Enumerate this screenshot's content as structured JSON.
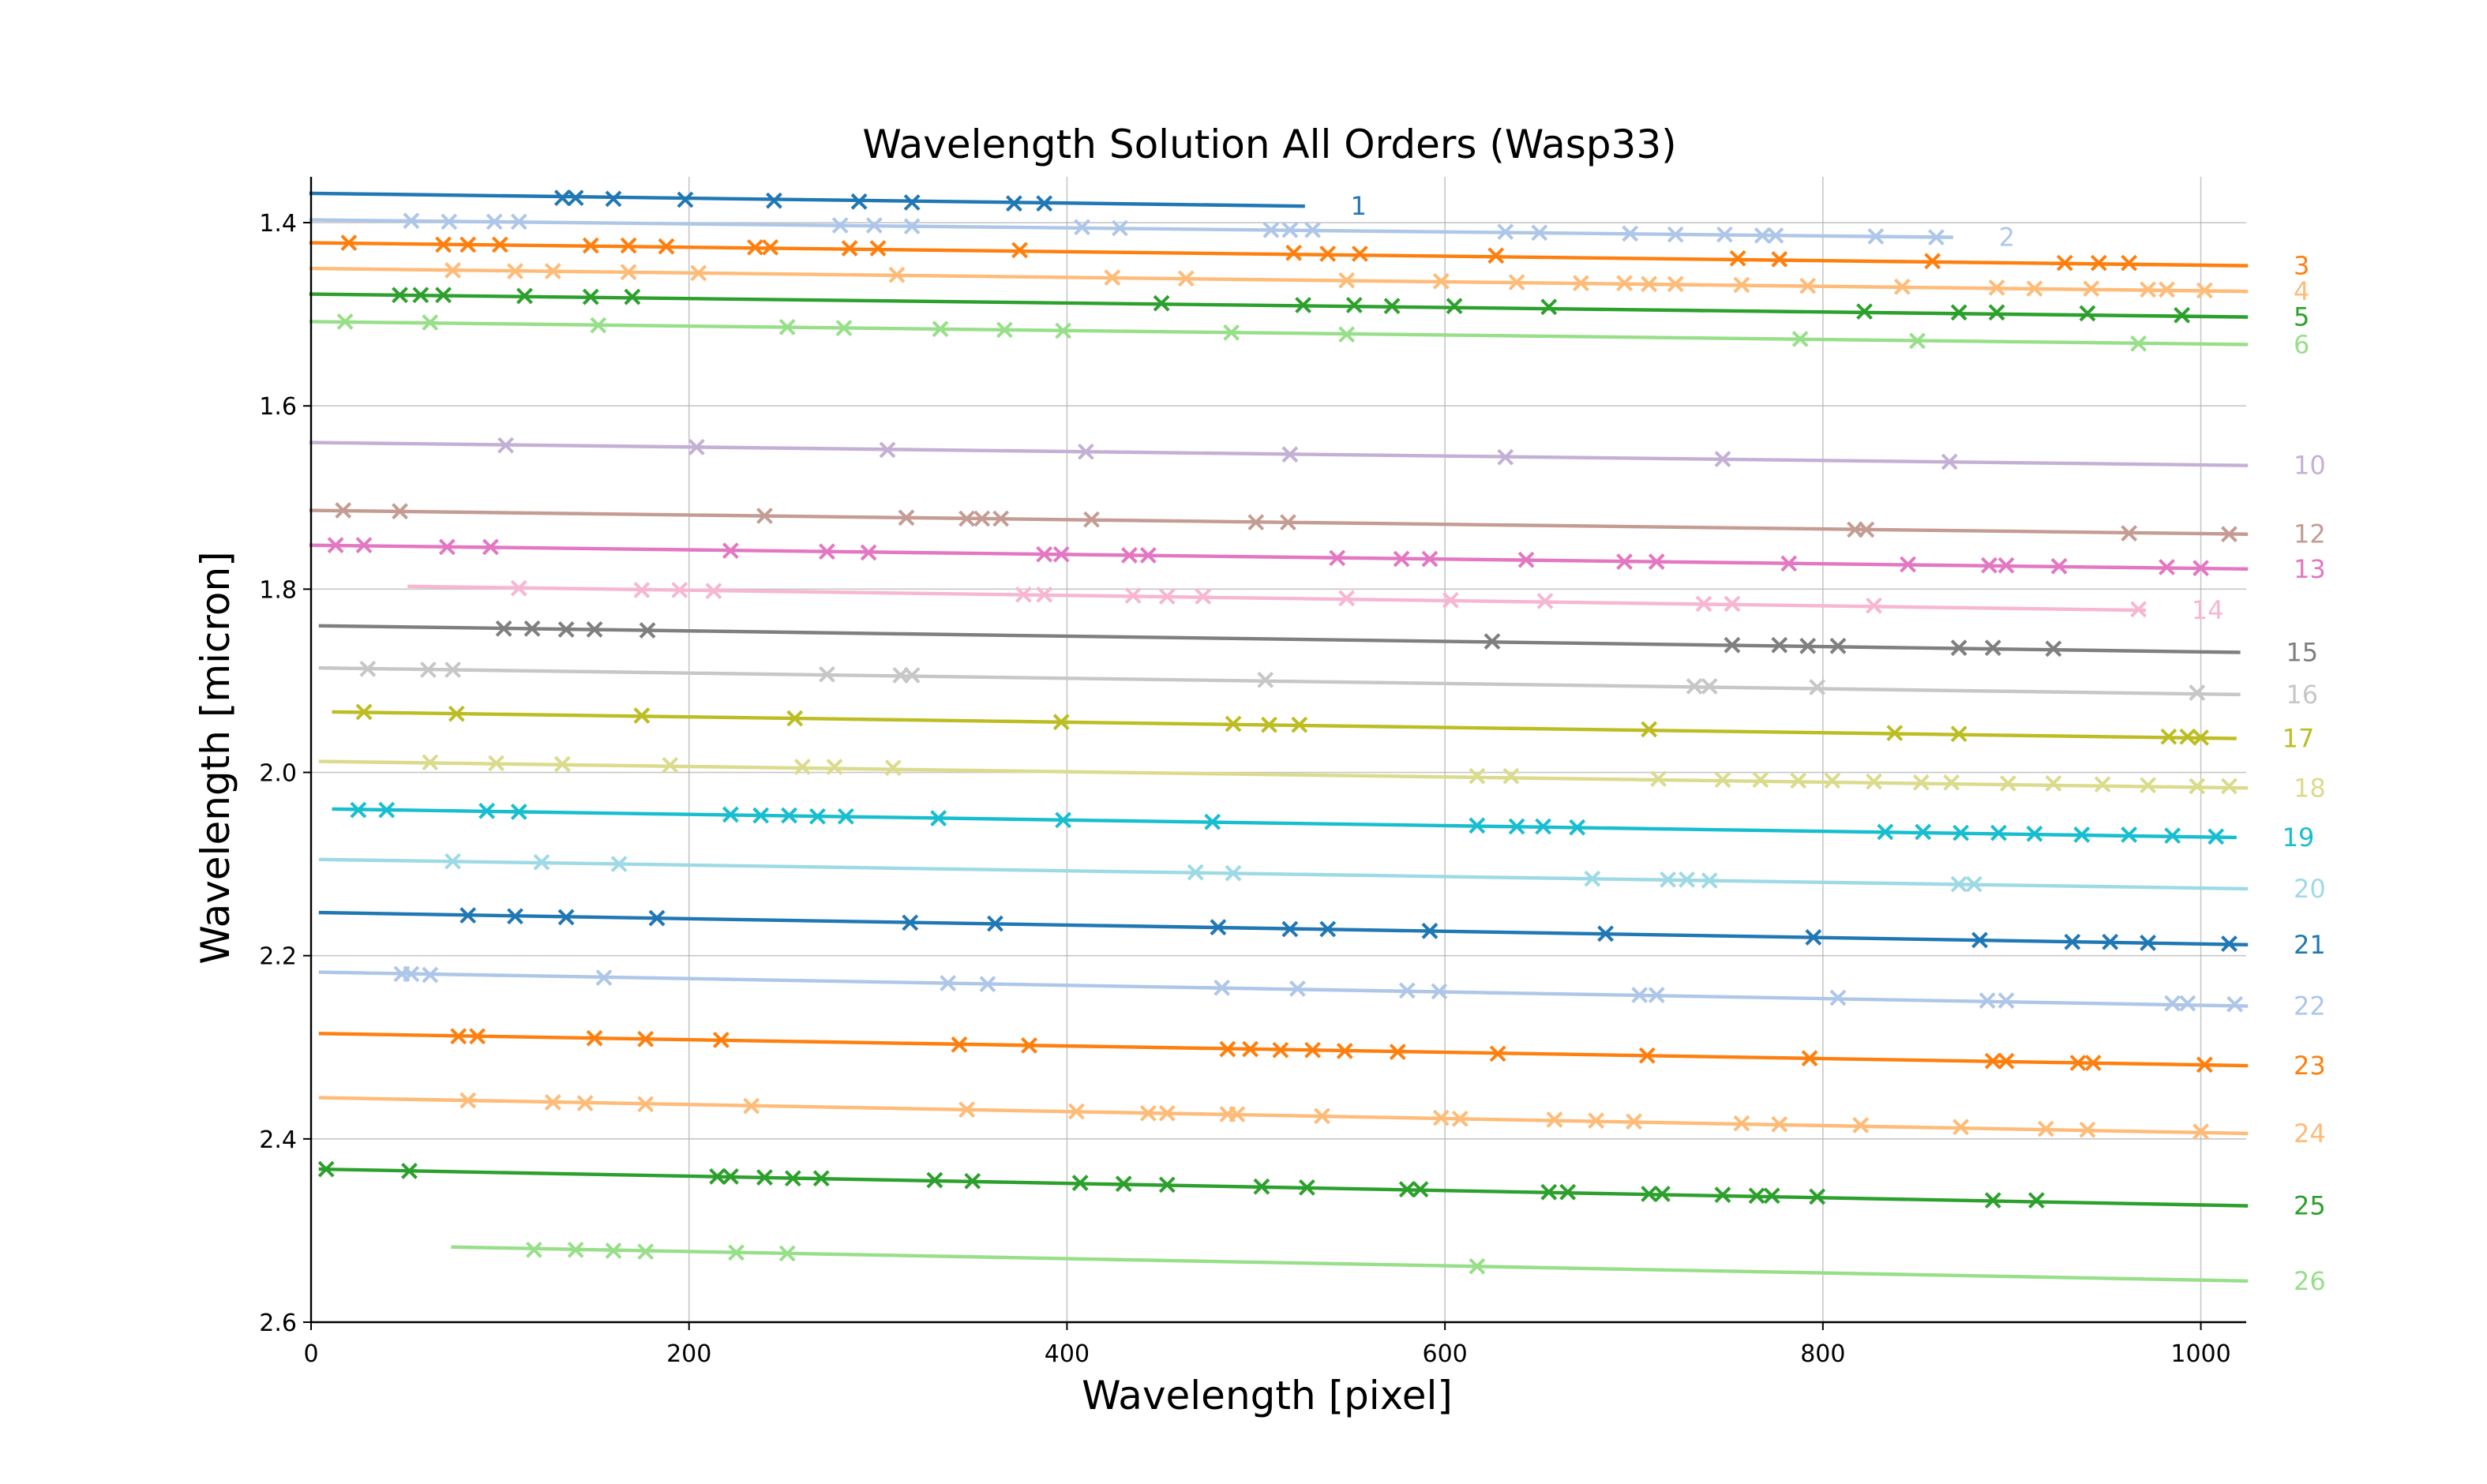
{
  "chart_data": {
    "type": "line",
    "title": "Wavelength Solution All Orders (Wasp33)",
    "xlabel": "Wavelength [pixel]",
    "ylabel": "Wavelength [micron]",
    "xlim": [
      0,
      1024
    ],
    "ylim": [
      2.6,
      1.35
    ],
    "y_inverted": true,
    "grid": true,
    "xticks": [
      0,
      200,
      400,
      600,
      800,
      1000
    ],
    "yticks": [
      1.4,
      1.6,
      1.8,
      2.0,
      2.2,
      2.4,
      2.6
    ],
    "xtick_labels": [
      "0",
      "200",
      "400",
      "600",
      "800",
      "1000"
    ],
    "ytick_labels": [
      "1.4",
      "1.6",
      "1.8",
      "2.0",
      "2.2",
      "2.4",
      "2.6"
    ],
    "series": [
      {
        "name": "1",
        "color": "#1f77b4",
        "line_x": [
          0,
          525
        ],
        "line_y": [
          1.368,
          1.382
        ],
        "points_x": [
          133,
          140,
          160,
          198,
          245,
          290,
          318,
          372,
          388
        ],
        "points_y": [
          1.373,
          1.373,
          1.374,
          1.375,
          1.376,
          1.377,
          1.378,
          1.379,
          1.379
        ]
      },
      {
        "name": "2",
        "color": "#aec7e8",
        "line_x": [
          0,
          868
        ],
        "line_y": [
          1.397,
          1.416
        ],
        "points_x": [
          53,
          73,
          97,
          110,
          280,
          298,
          318,
          408,
          428,
          508,
          518,
          530,
          632,
          650,
          698,
          722,
          748,
          768,
          775,
          828,
          860
        ],
        "points_y": [
          1.398,
          1.399,
          1.399,
          1.399,
          1.403,
          1.403,
          1.404,
          1.405,
          1.406,
          1.408,
          1.408,
          1.408,
          1.41,
          1.411,
          1.412,
          1.413,
          1.413,
          1.414,
          1.414,
          1.415,
          1.416
        ]
      },
      {
        "name": "3",
        "color": "#ff7f0e",
        "line_x": [
          0,
          1024
        ],
        "line_y": [
          1.422,
          1.447
        ],
        "points_x": [
          20,
          70,
          83,
          100,
          148,
          168,
          188,
          235,
          243,
          285,
          300,
          375,
          520,
          538,
          555,
          627,
          755,
          777,
          858,
          928,
          946,
          962
        ],
        "points_y": [
          1.422,
          1.424,
          1.424,
          1.424,
          1.425,
          1.425,
          1.426,
          1.427,
          1.427,
          1.428,
          1.428,
          1.43,
          1.433,
          1.434,
          1.434,
          1.436,
          1.439,
          1.44,
          1.442,
          1.444,
          1.444,
          1.444
        ]
      },
      {
        "name": "4",
        "color": "#ffbb78",
        "line_x": [
          0,
          1024
        ],
        "line_y": [
          1.45,
          1.475
        ],
        "points_x": [
          75,
          108,
          128,
          168,
          205,
          310,
          424,
          463,
          548,
          598,
          638,
          672,
          695,
          708,
          722,
          757,
          792,
          842,
          892,
          912,
          942,
          972,
          982,
          1002
        ],
        "points_y": [
          1.452,
          1.453,
          1.453,
          1.454,
          1.455,
          1.457,
          1.46,
          1.461,
          1.463,
          1.464,
          1.465,
          1.466,
          1.466,
          1.467,
          1.467,
          1.468,
          1.469,
          1.47,
          1.471,
          1.472,
          1.472,
          1.473,
          1.473,
          1.474
        ]
      },
      {
        "name": "5",
        "color": "#2ca02c",
        "line_x": [
          0,
          1024
        ],
        "line_y": [
          1.478,
          1.503
        ],
        "points_x": [
          47,
          58,
          70,
          113,
          148,
          170,
          450,
          525,
          552,
          572,
          605,
          655,
          822,
          872,
          892,
          940,
          990
        ],
        "points_y": [
          1.479,
          1.479,
          1.479,
          1.48,
          1.481,
          1.481,
          1.488,
          1.49,
          1.49,
          1.491,
          1.491,
          1.492,
          1.497,
          1.498,
          1.498,
          1.499,
          1.501
        ]
      },
      {
        "name": "6",
        "color": "#98df8a",
        "line_x": [
          0,
          1024
        ],
        "line_y": [
          1.508,
          1.533
        ],
        "points_x": [
          18,
          63,
          152,
          252,
          282,
          333,
          367,
          398,
          487,
          548,
          788,
          850,
          967
        ],
        "points_y": [
          1.508,
          1.509,
          1.512,
          1.514,
          1.515,
          1.516,
          1.517,
          1.518,
          1.52,
          1.522,
          1.527,
          1.529,
          1.532
        ]
      },
      {
        "name": "10",
        "color": "#c5b0d5",
        "line_x": [
          0,
          1024
        ],
        "line_y": [
          1.64,
          1.665
        ],
        "points_x": [
          103,
          204,
          305,
          410,
          518,
          632,
          747,
          867
        ],
        "points_y": [
          1.643,
          1.645,
          1.648,
          1.65,
          1.653,
          1.656,
          1.658,
          1.661
        ]
      },
      {
        "name": "12",
        "color": "#c49c94",
        "line_x": [
          0,
          1024
        ],
        "line_y": [
          1.714,
          1.74
        ],
        "points_x": [
          17,
          47,
          240,
          315,
          347,
          355,
          365,
          413,
          500,
          517,
          817,
          823,
          962,
          1015
        ],
        "points_y": [
          1.714,
          1.715,
          1.72,
          1.722,
          1.723,
          1.723,
          1.723,
          1.724,
          1.727,
          1.727,
          1.735,
          1.735,
          1.739,
          1.74
        ]
      },
      {
        "name": "13",
        "color": "#e377c2",
        "line_x": [
          0,
          1024
        ],
        "line_y": [
          1.752,
          1.778
        ],
        "points_x": [
          13,
          28,
          72,
          95,
          222,
          273,
          295,
          388,
          397,
          433,
          443,
          543,
          577,
          592,
          643,
          695,
          712,
          782,
          845,
          888,
          897,
          925,
          982,
          1000
        ],
        "points_y": [
          1.752,
          1.752,
          1.754,
          1.754,
          1.758,
          1.759,
          1.76,
          1.762,
          1.762,
          1.763,
          1.763,
          1.766,
          1.767,
          1.767,
          1.768,
          1.77,
          1.77,
          1.772,
          1.773,
          1.774,
          1.774,
          1.775,
          1.776,
          1.777
        ]
      },
      {
        "name": "14",
        "color": "#f7b6d2",
        "line_x": [
          52,
          970
        ],
        "line_y": [
          1.797,
          1.823
        ],
        "points_x": [
          110,
          175,
          195,
          213,
          377,
          388,
          435,
          453,
          472,
          548,
          603,
          653,
          737,
          752,
          827,
          967
        ],
        "points_y": [
          1.799,
          1.801,
          1.801,
          1.802,
          1.806,
          1.806,
          1.807,
          1.808,
          1.808,
          1.81,
          1.812,
          1.813,
          1.816,
          1.816,
          1.818,
          1.822
        ]
      },
      {
        "name": "15",
        "color": "#7f7f7f",
        "line_x": [
          5,
          1020
        ],
        "line_y": [
          1.84,
          1.869
        ],
        "points_x": [
          102,
          117,
          135,
          150,
          178,
          625,
          752,
          777,
          792,
          808,
          872,
          890,
          922
        ],
        "points_y": [
          1.843,
          1.843,
          1.844,
          1.844,
          1.845,
          1.857,
          1.861,
          1.861,
          1.862,
          1.862,
          1.864,
          1.864,
          1.865
        ]
      },
      {
        "name": "16",
        "color": "#c7c7c7",
        "line_x": [
          5,
          1020
        ],
        "line_y": [
          1.886,
          1.915
        ],
        "points_x": [
          30,
          62,
          75,
          273,
          312,
          318,
          505,
          732,
          740,
          797,
          998
        ],
        "points_y": [
          1.887,
          1.888,
          1.888,
          1.893,
          1.894,
          1.894,
          1.899,
          1.906,
          1.906,
          1.907,
          1.913
        ]
      },
      {
        "name": "17",
        "color": "#bcbd22",
        "line_x": [
          12,
          1018
        ],
        "line_y": [
          1.934,
          1.963
        ],
        "points_x": [
          28,
          77,
          175,
          256,
          397,
          488,
          507,
          523,
          708,
          838,
          872,
          983,
          993,
          1000
        ],
        "points_y": [
          1.934,
          1.936,
          1.938,
          1.941,
          1.945,
          1.947,
          1.948,
          1.948,
          1.953,
          1.957,
          1.958,
          1.961,
          1.961,
          1.962
        ]
      },
      {
        "name": "18",
        "color": "#dbdb8d",
        "line_x": [
          5,
          1024
        ],
        "line_y": [
          1.988,
          2.017
        ],
        "points_x": [
          63,
          98,
          133,
          190,
          260,
          277,
          308,
          617,
          635,
          713,
          747,
          767,
          787,
          805,
          827,
          852,
          868,
          898,
          922,
          948,
          972,
          998,
          1015
        ],
        "points_y": [
          1.989,
          1.99,
          1.991,
          1.992,
          1.994,
          1.994,
          1.995,
          2.004,
          2.004,
          2.007,
          2.008,
          2.008,
          2.009,
          2.009,
          2.01,
          2.011,
          2.011,
          2.012,
          2.012,
          2.013,
          2.014,
          2.015,
          2.015
        ]
      },
      {
        "name": "19",
        "color": "#17becf",
        "line_x": [
          12,
          1018
        ],
        "line_y": [
          2.04,
          2.071
        ],
        "points_x": [
          25,
          40,
          93,
          110,
          222,
          238,
          253,
          268,
          283,
          332,
          398,
          477,
          617,
          638,
          652,
          670,
          833,
          853,
          873,
          893,
          912,
          937,
          962,
          985,
          1008
        ],
        "points_y": [
          2.041,
          2.041,
          2.042,
          2.043,
          2.046,
          2.047,
          2.047,
          2.048,
          2.048,
          2.05,
          2.052,
          2.054,
          2.058,
          2.059,
          2.059,
          2.06,
          2.065,
          2.065,
          2.066,
          2.066,
          2.067,
          2.068,
          2.068,
          2.069,
          2.07
        ]
      },
      {
        "name": "20",
        "color": "#9edae5",
        "line_x": [
          5,
          1024
        ],
        "line_y": [
          2.095,
          2.127
        ],
        "points_x": [
          75,
          122,
          163,
          468,
          488,
          678,
          718,
          728,
          740,
          872,
          880
        ],
        "points_y": [
          2.097,
          2.098,
          2.1,
          2.109,
          2.11,
          2.116,
          2.117,
          2.117,
          2.118,
          2.122,
          2.122
        ]
      },
      {
        "name": "21",
        "color": "#1f77b4",
        "line_x": [
          5,
          1024
        ],
        "line_y": [
          2.153,
          2.188
        ],
        "points_x": [
          83,
          108,
          135,
          183,
          317,
          362,
          480,
          518,
          538,
          592,
          685,
          795,
          883,
          932,
          952,
          972,
          1015
        ],
        "points_y": [
          2.156,
          2.157,
          2.158,
          2.159,
          2.164,
          2.165,
          2.169,
          2.171,
          2.171,
          2.173,
          2.176,
          2.18,
          2.183,
          2.185,
          2.185,
          2.186,
          2.187
        ]
      },
      {
        "name": "22",
        "color": "#aec7e8",
        "line_x": [
          5,
          1024
        ],
        "line_y": [
          2.218,
          2.255
        ],
        "points_x": [
          48,
          53,
          63,
          155,
          337,
          358,
          482,
          522,
          580,
          597,
          703,
          712,
          808,
          887,
          897,
          985,
          993,
          1018
        ],
        "points_y": [
          2.22,
          2.22,
          2.221,
          2.224,
          2.23,
          2.231,
          2.235,
          2.236,
          2.238,
          2.239,
          2.243,
          2.243,
          2.246,
          2.249,
          2.249,
          2.252,
          2.252,
          2.253
        ]
      },
      {
        "name": "23",
        "color": "#ff7f0e",
        "line_x": [
          5,
          1024
        ],
        "line_y": [
          2.285,
          2.32
        ],
        "points_x": [
          78,
          88,
          150,
          177,
          217,
          343,
          380,
          485,
          497,
          513,
          530,
          547,
          575,
          628,
          707,
          793,
          890,
          897,
          935,
          943,
          1002
        ],
        "points_y": [
          2.288,
          2.288,
          2.29,
          2.291,
          2.292,
          2.297,
          2.298,
          2.302,
          2.302,
          2.303,
          2.303,
          2.304,
          2.305,
          2.307,
          2.309,
          2.312,
          2.315,
          2.315,
          2.317,
          2.317,
          2.319
        ]
      },
      {
        "name": "24",
        "color": "#ffbb78",
        "line_x": [
          5,
          1024
        ],
        "line_y": [
          2.355,
          2.394
        ],
        "points_x": [
          83,
          128,
          145,
          177,
          233,
          347,
          405,
          443,
          453,
          485,
          490,
          535,
          598,
          608,
          658,
          680,
          700,
          757,
          777,
          820,
          873,
          918,
          940,
          1000
        ],
        "points_y": [
          2.358,
          2.36,
          2.361,
          2.362,
          2.364,
          2.368,
          2.37,
          2.372,
          2.372,
          2.373,
          2.373,
          2.375,
          2.377,
          2.378,
          2.379,
          2.38,
          2.381,
          2.383,
          2.384,
          2.385,
          2.387,
          2.389,
          2.39,
          2.392
        ]
      },
      {
        "name": "25",
        "color": "#2ca02c",
        "line_x": [
          5,
          1024
        ],
        "line_y": [
          2.433,
          2.473
        ],
        "points_x": [
          8,
          52,
          215,
          222,
          240,
          255,
          270,
          330,
          350,
          407,
          430,
          453,
          503,
          527,
          580,
          587,
          655,
          665,
          708,
          715,
          747,
          765,
          773,
          797,
          890,
          913
        ],
        "points_y": [
          2.433,
          2.435,
          2.441,
          2.441,
          2.442,
          2.443,
          2.443,
          2.445,
          2.446,
          2.448,
          2.449,
          2.45,
          2.452,
          2.453,
          2.455,
          2.455,
          2.458,
          2.458,
          2.46,
          2.46,
          2.461,
          2.462,
          2.462,
          2.463,
          2.467,
          2.467
        ]
      },
      {
        "name": "26",
        "color": "#98df8a",
        "line_x": [
          75,
          1024
        ],
        "line_y": [
          2.518,
          2.555
        ],
        "points_x": [
          118,
          140,
          160,
          177,
          225,
          252,
          617
        ],
        "points_y": [
          2.521,
          2.521,
          2.522,
          2.523,
          2.524,
          2.525,
          2.539
        ]
      }
    ]
  }
}
